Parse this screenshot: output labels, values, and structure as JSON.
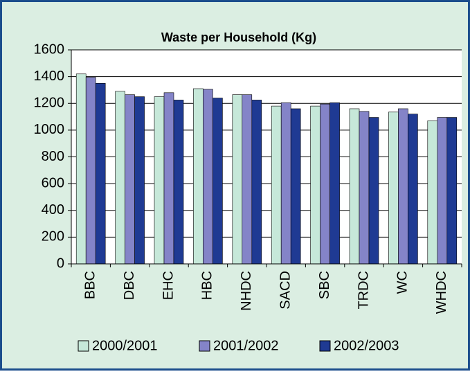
{
  "chart_data": {
    "type": "bar",
    "title": "Waste per Household (Kg)",
    "categories": [
      "BBC",
      "DBC",
      "EHC",
      "HBC",
      "NHDC",
      "SACD",
      "SBC",
      "TRDC",
      "WC",
      "WHDC"
    ],
    "series": [
      {
        "name": "2000/2001",
        "color": "#c6e8d9",
        "values": [
          1420,
          1290,
          1250,
          1310,
          1265,
          1180,
          1180,
          1160,
          1135,
          1070
        ]
      },
      {
        "name": "2001/2002",
        "color": "#8484c8",
        "values": [
          1395,
          1265,
          1280,
          1305,
          1265,
          1205,
          1195,
          1140,
          1160,
          1095
        ]
      },
      {
        "name": "2002/2003",
        "color": "#1f3a93",
        "values": [
          1350,
          1250,
          1225,
          1240,
          1225,
          1160,
          1205,
          1095,
          1120,
          1095
        ]
      }
    ],
    "ylim": [
      0,
      1600
    ],
    "yticks": [
      0,
      200,
      400,
      600,
      800,
      1000,
      1200,
      1400,
      1600
    ],
    "grid": true,
    "legend": "bottom"
  }
}
